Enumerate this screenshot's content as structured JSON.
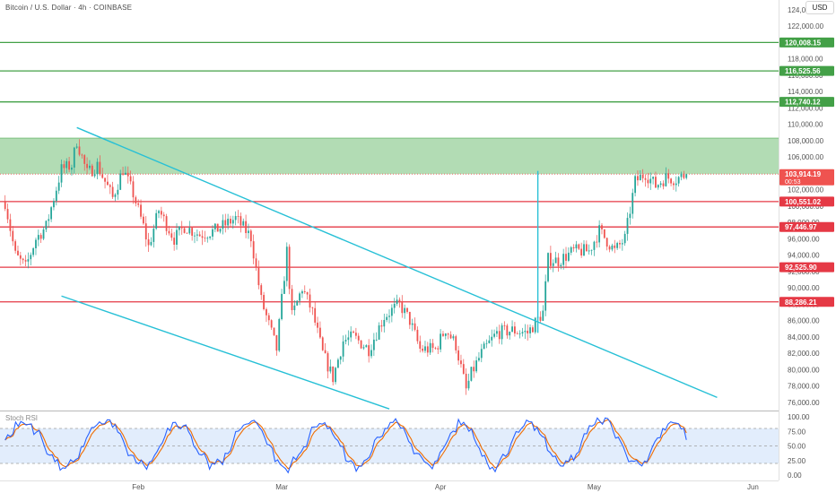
{
  "header": {
    "symbol_title": "Bitcoin / U.S. Dollar · 4h · COINBASE",
    "currency_label": "USD"
  },
  "colors": {
    "up": "#26a69a",
    "down": "#ef5350",
    "channel": "#27c0d6",
    "resistance": "#e53945",
    "target": "#43a047",
    "zone_fill": "#a5d6a7",
    "stoch_k": "#2962ff",
    "stoch_d": "#ef6c00",
    "stoch_band": "#dbe9fb"
  },
  "price_axis": {
    "ticks": [
      124000,
      122000,
      120000,
      118000,
      116000,
      114000,
      112000,
      110000,
      108000,
      106000,
      104000,
      102000,
      100000,
      98000,
      96000,
      94000,
      92000,
      90000,
      88000,
      86000,
      84000,
      82000,
      80000,
      78000,
      76000
    ],
    "tick_labels": [
      "124,000.00",
      "122,000.00",
      "120,000.00",
      "118,000.00",
      "116,000.00",
      "114,000.00",
      "112,000.00",
      "110,000.00",
      "108,000.00",
      "106,000.00",
      "104,000.00",
      "102,000.00",
      "100,000.00",
      "98,000.00",
      "96,000.00",
      "94,000.00",
      "92,000.00",
      "90,000.00",
      "88,000.00",
      "86,000.00",
      "84,000.00",
      "82,000.00",
      "80,000.00",
      "78,000.00",
      "76,000.00"
    ]
  },
  "stoch_axis": {
    "ticks": [
      100,
      75,
      50,
      25,
      0
    ],
    "tick_labels": [
      "100.00",
      "75.00",
      "50.00",
      "25.00",
      "0.00"
    ]
  },
  "time_axis": {
    "labels": [
      {
        "date": "2025-02-01",
        "label": "Feb"
      },
      {
        "date": "2025-03-01",
        "label": "Mar"
      },
      {
        "date": "2025-04-01",
        "label": "Apr"
      },
      {
        "date": "2025-05-01",
        "label": "May"
      },
      {
        "date": "2025-06-01",
        "label": "Jun"
      }
    ]
  },
  "chart_data": {
    "type": "line",
    "title": "Bitcoin / U.S. Dollar · 4h · COINBASE",
    "xlabel": "",
    "ylabel": "",
    "x_range": [
      "2025-01-05",
      "2025-06-06"
    ],
    "ylim": [
      75000,
      125200
    ],
    "grid": false,
    "close_path": {
      "x": [
        "2025-01-06",
        "2025-01-08",
        "2025-01-10",
        "2025-01-12",
        "2025-01-14",
        "2025-01-17",
        "2025-01-19",
        "2025-01-20",
        "2025-01-22",
        "2025-01-24",
        "2025-01-27",
        "2025-01-29",
        "2025-01-31",
        "2025-02-02",
        "2025-02-03",
        "2025-02-05",
        "2025-02-08",
        "2025-02-10",
        "2025-02-13",
        "2025-02-16",
        "2025-02-20",
        "2025-02-23",
        "2025-02-25",
        "2025-02-27",
        "2025-02-28",
        "2025-03-02",
        "2025-03-03",
        "2025-03-05",
        "2025-03-07",
        "2025-03-09",
        "2025-03-11",
        "2025-03-13",
        "2025-03-15",
        "2025-03-18",
        "2025-03-21",
        "2025-03-24",
        "2025-03-26",
        "2025-03-28",
        "2025-03-31",
        "2025-04-02",
        "2025-04-04",
        "2025-04-06",
        "2025-04-07",
        "2025-04-09",
        "2025-04-12",
        "2025-04-15",
        "2025-04-18",
        "2025-04-21",
        "2025-04-22",
        "2025-04-24",
        "2025-04-27",
        "2025-04-30",
        "2025-05-02",
        "2025-05-05",
        "2025-05-07",
        "2025-05-09",
        "2025-05-11",
        "2025-05-13",
        "2025-05-15",
        "2025-05-17",
        "2025-05-19"
      ],
      "y": [
        100500,
        94000,
        92500,
        96000,
        97500,
        104500,
        105000,
        108000,
        104000,
        105000,
        101000,
        104500,
        101500,
        97500,
        95000,
        99500,
        96000,
        97500,
        96500,
        97000,
        98500,
        96200,
        88500,
        84500,
        82500,
        94500,
        86500,
        90000,
        87000,
        82000,
        79000,
        83500,
        84000,
        82500,
        86500,
        88000,
        86000,
        82500,
        82500,
        85000,
        83000,
        77500,
        79500,
        82000,
        84500,
        84800,
        84500,
        87000,
        93500,
        93300,
        94500,
        94500,
        97000,
        94500,
        96000,
        103000,
        104000,
        102500,
        103500,
        103300,
        103914
      ]
    },
    "series": [
      {
        "name": "Stoch RSI",
        "type": "oscillator",
        "ylim": [
          0,
          100
        ],
        "bands": [
          20,
          80
        ],
        "values": [
          60,
          85,
          90,
          70,
          30,
          12,
          20,
          60,
          88,
          92,
          70,
          35,
          15,
          25,
          65,
          90,
          80,
          40,
          18,
          22,
          55,
          88,
          95,
          60,
          25,
          12,
          35,
          75,
          90,
          70,
          30,
          14,
          28,
          70,
          92,
          85,
          45,
          15,
          20,
          60,
          88,
          75,
          35,
          12,
          30,
          70,
          92,
          80,
          40,
          18,
          25,
          65,
          90,
          95,
          60,
          22,
          15,
          45,
          85,
          90,
          70
        ]
      }
    ],
    "horizontal_levels": [
      {
        "price": 120008.15,
        "label": "120,008.15",
        "role": "target"
      },
      {
        "price": 116525.56,
        "label": "116,525.56",
        "role": "target"
      },
      {
        "price": 112740.12,
        "label": "112,740.12",
        "role": "target"
      },
      {
        "price": 100551.02,
        "label": "100,551.02",
        "role": "resistance"
      },
      {
        "price": 97446.97,
        "label": "97,446.97",
        "role": "resistance"
      },
      {
        "price": 92525.9,
        "label": "92,525.90",
        "role": "resistance"
      },
      {
        "price": 88286.21,
        "label": "88,286.21",
        "role": "resistance"
      }
    ],
    "zone": {
      "top": 108300,
      "bottom": 103914
    },
    "current_price": {
      "price": 103914.19,
      "label": "103,914.19",
      "countdown": "00:53"
    },
    "trendlines": [
      {
        "name": "channel-upper",
        "from": {
          "date": "2025-01-20",
          "price": 109600
        },
        "to": {
          "date": "2025-05-25",
          "price": 76600
        }
      },
      {
        "name": "channel-lower",
        "from": {
          "date": "2025-01-17",
          "price": 89000
        },
        "to": {
          "date": "2025-03-22",
          "price": 75200
        }
      },
      {
        "name": "breakout-pole",
        "from": {
          "date": "2025-04-20",
          "price": 84500
        },
        "to": {
          "date": "2025-04-20",
          "price": 104300
        }
      }
    ]
  }
}
